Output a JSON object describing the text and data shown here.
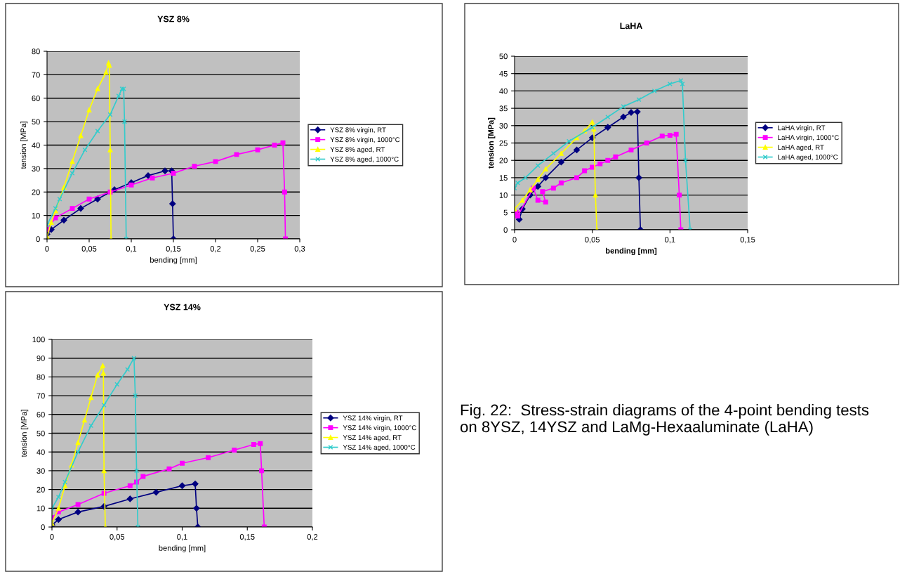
{
  "chart_data": [
    {
      "type": "line",
      "title": "YSZ 8%",
      "xlabel": "bending [mm]",
      "ylabel": "tension [MPa]",
      "xlim": [
        0,
        0.3
      ],
      "ylim": [
        0,
        80
      ],
      "xticks": [
        0,
        {
          "value": 0.05,
          "label": "0,05"
        },
        {
          "value": 0.1,
          "label": "0,1"
        },
        {
          "value": 0.15,
          "label": "0,15"
        },
        {
          "value": 0.2,
          "label": "0,2"
        },
        {
          "value": 0.25,
          "label": "0,25"
        },
        {
          "value": 0.3,
          "label": "0,3"
        }
      ],
      "yticks": [
        0,
        10,
        20,
        30,
        40,
        50,
        60,
        70,
        80
      ],
      "grid": "y",
      "legend": "right",
      "line_style": "solid",
      "series": [
        {
          "name": "YSZ 8% virgin, RT",
          "color": "#000080",
          "marker": "diamond",
          "x": [
            0,
            0.005,
            0.02,
            0.04,
            0.06,
            0.08,
            0.1,
            0.12,
            0.14,
            0.148,
            0.149,
            0.15
          ],
          "values": [
            2,
            4,
            8,
            13,
            17,
            21,
            24,
            27,
            29,
            29,
            15,
            0
          ]
        },
        {
          "name": "YSZ 8% virgin, 1000°C",
          "color": "#ff00ff",
          "marker": "square",
          "x": [
            0,
            0.01,
            0.03,
            0.05,
            0.075,
            0.1,
            0.125,
            0.15,
            0.175,
            0.2,
            0.225,
            0.25,
            0.27,
            0.28,
            0.282,
            0.283
          ],
          "values": [
            4,
            9,
            13,
            17,
            20,
            23,
            26,
            28,
            31,
            33,
            36,
            38,
            40,
            41,
            20,
            0
          ]
        },
        {
          "name": "YSZ 8% aged, RT",
          "color": "#ffff00",
          "marker": "triangle",
          "x": [
            0,
            0.005,
            0.01,
            0.02,
            0.03,
            0.04,
            0.05,
            0.06,
            0.07,
            0.073,
            0.074,
            0.075,
            0.076
          ],
          "values": [
            1,
            7,
            12,
            22,
            33,
            44,
            55,
            64,
            71,
            75,
            74,
            38,
            0
          ]
        },
        {
          "name": "YSZ 8% aged, 1000°C",
          "color": "#33cccc",
          "marker": "cross",
          "x": [
            0,
            0.01,
            0.015,
            0.03,
            0.045,
            0.06,
            0.075,
            0.085,
            0.089,
            0.091,
            0.092,
            0.094
          ],
          "values": [
            6,
            13,
            17,
            28,
            38,
            46,
            53,
            61,
            64,
            64,
            50,
            0
          ]
        }
      ]
    },
    {
      "type": "line",
      "title": "LaHA",
      "xlabel": "bending [mm]",
      "ylabel": "tension [MPa]",
      "xlim": [
        0,
        0.15
      ],
      "ylim": [
        0,
        50
      ],
      "xticks": [
        0,
        {
          "value": 0.05,
          "label": "0,05"
        },
        {
          "value": 0.1,
          "label": "0,1"
        },
        {
          "value": 0.15,
          "label": "0,15"
        }
      ],
      "yticks": [
        0,
        5,
        10,
        15,
        20,
        25,
        30,
        35,
        40,
        45,
        50
      ],
      "grid": "y",
      "legend": "right",
      "line_style": "solid",
      "series": [
        {
          "name": "LaHA virgin, RT",
          "color": "#000080",
          "marker": "diamond",
          "x": [
            0.003,
            0.005,
            0.01,
            0.015,
            0.02,
            0.03,
            0.04,
            0.05,
            0.06,
            0.07,
            0.075,
            0.079,
            0.08,
            0.081
          ],
          "values": [
            3,
            6,
            10,
            12.5,
            15,
            19.5,
            23,
            26.5,
            29.5,
            32.5,
            33.8,
            34,
            15,
            0
          ]
        },
        {
          "name": "LaHA virgin, 1000°C",
          "color": "#ff00ff",
          "marker": "square",
          "x": [
            0.001,
            0.002,
            0.012,
            0.015,
            0.02,
            0.018,
            0.025,
            0.03,
            0.04,
            0.045,
            0.05,
            0.055,
            0.06,
            0.065,
            0.075,
            0.085,
            0.095,
            0.1,
            0.104,
            0.106,
            0.107
          ],
          "values": [
            5,
            4,
            12,
            8.5,
            8,
            11,
            12,
            13.5,
            15,
            17,
            18,
            19,
            20,
            21,
            23,
            25,
            27,
            27.2,
            27.5,
            10,
            0
          ]
        },
        {
          "name": "LaHA aged, RT",
          "color": "#ffff00",
          "marker": "triangle",
          "x": [
            0,
            0.005,
            0.01,
            0.015,
            0.02,
            0.03,
            0.04,
            0.045,
            0.05,
            0.051,
            0.052,
            0.053
          ],
          "values": [
            6,
            8.5,
            11.5,
            14.5,
            17.5,
            22,
            26.5,
            28.5,
            31,
            29,
            10,
            0
          ]
        },
        {
          "name": "LaHA aged, 1000°C",
          "color": "#33cccc",
          "marker": "cross",
          "x": [
            0,
            0.002,
            0.007,
            0.015,
            0.025,
            0.035,
            0.05,
            0.06,
            0.07,
            0.08,
            0.09,
            0.1,
            0.107,
            0.108,
            0.11,
            0.113
          ],
          "values": [
            12,
            13.5,
            15,
            18.5,
            22,
            25.5,
            29.5,
            32.5,
            35.5,
            37.5,
            40,
            42,
            43,
            42,
            20,
            0
          ]
        }
      ]
    },
    {
      "type": "line",
      "title": "YSZ 14%",
      "xlabel": "bending [mm]",
      "ylabel": "tension [MPa]",
      "xlim": [
        0,
        0.2
      ],
      "ylim": [
        0,
        100
      ],
      "xticks": [
        0,
        {
          "value": 0.05,
          "label": "0,05"
        },
        {
          "value": 0.1,
          "label": "0,1"
        },
        {
          "value": 0.15,
          "label": "0,15"
        },
        {
          "value": 0.2,
          "label": "0,2"
        }
      ],
      "yticks": [
        0,
        10,
        20,
        30,
        40,
        50,
        60,
        70,
        80,
        90,
        100
      ],
      "grid": "y",
      "legend": "right",
      "line_style": "solid",
      "series": [
        {
          "name": "YSZ 14% virgin, RT",
          "color": "#000080",
          "marker": "diamond",
          "x": [
            0,
            0.005,
            0.02,
            0.04,
            0.06,
            0.08,
            0.1,
            0.11,
            0.111,
            0.112
          ],
          "values": [
            1,
            4,
            8,
            11,
            15,
            18.5,
            22,
            23,
            10,
            0
          ]
        },
        {
          "name": "YSZ 14% virgin, 1000°C",
          "color": "#ff00ff",
          "marker": "square",
          "x": [
            0,
            0.005,
            0.02,
            0.04,
            0.06,
            0.065,
            0.07,
            0.09,
            0.1,
            0.12,
            0.14,
            0.155,
            0.16,
            0.161,
            0.163
          ],
          "values": [
            5,
            8,
            12,
            18,
            22,
            24,
            27,
            31,
            34,
            37,
            41,
            44,
            44.5,
            30,
            0
          ]
        },
        {
          "name": "YSZ 14% aged, RT",
          "color": "#ffff00",
          "marker": "triangle",
          "x": [
            0,
            0.005,
            0.01,
            0.015,
            0.02,
            0.025,
            0.03,
            0.035,
            0.039,
            0.0395,
            0.04,
            0.041
          ],
          "values": [
            2,
            10,
            22,
            33,
            45,
            57,
            69,
            81,
            86,
            82,
            30,
            0
          ]
        },
        {
          "name": "YSZ 14% aged, 1000°C",
          "color": "#33cccc",
          "marker": "cross",
          "x": [
            0,
            0.005,
            0.01,
            0.02,
            0.03,
            0.04,
            0.05,
            0.058,
            0.063,
            0.064,
            0.065,
            0.066
          ],
          "values": [
            10,
            16,
            24,
            40,
            54,
            65,
            76,
            84,
            90,
            70,
            30,
            0
          ]
        }
      ]
    },
    {
      "type": "other",
      "annotations": [
        "Fig. 22:  Stress-strain diagrams of the 4-point bending tests on 8YSZ, 14YSZ and LaMg-Hexaaluminate (LaHA)"
      ]
    }
  ]
}
